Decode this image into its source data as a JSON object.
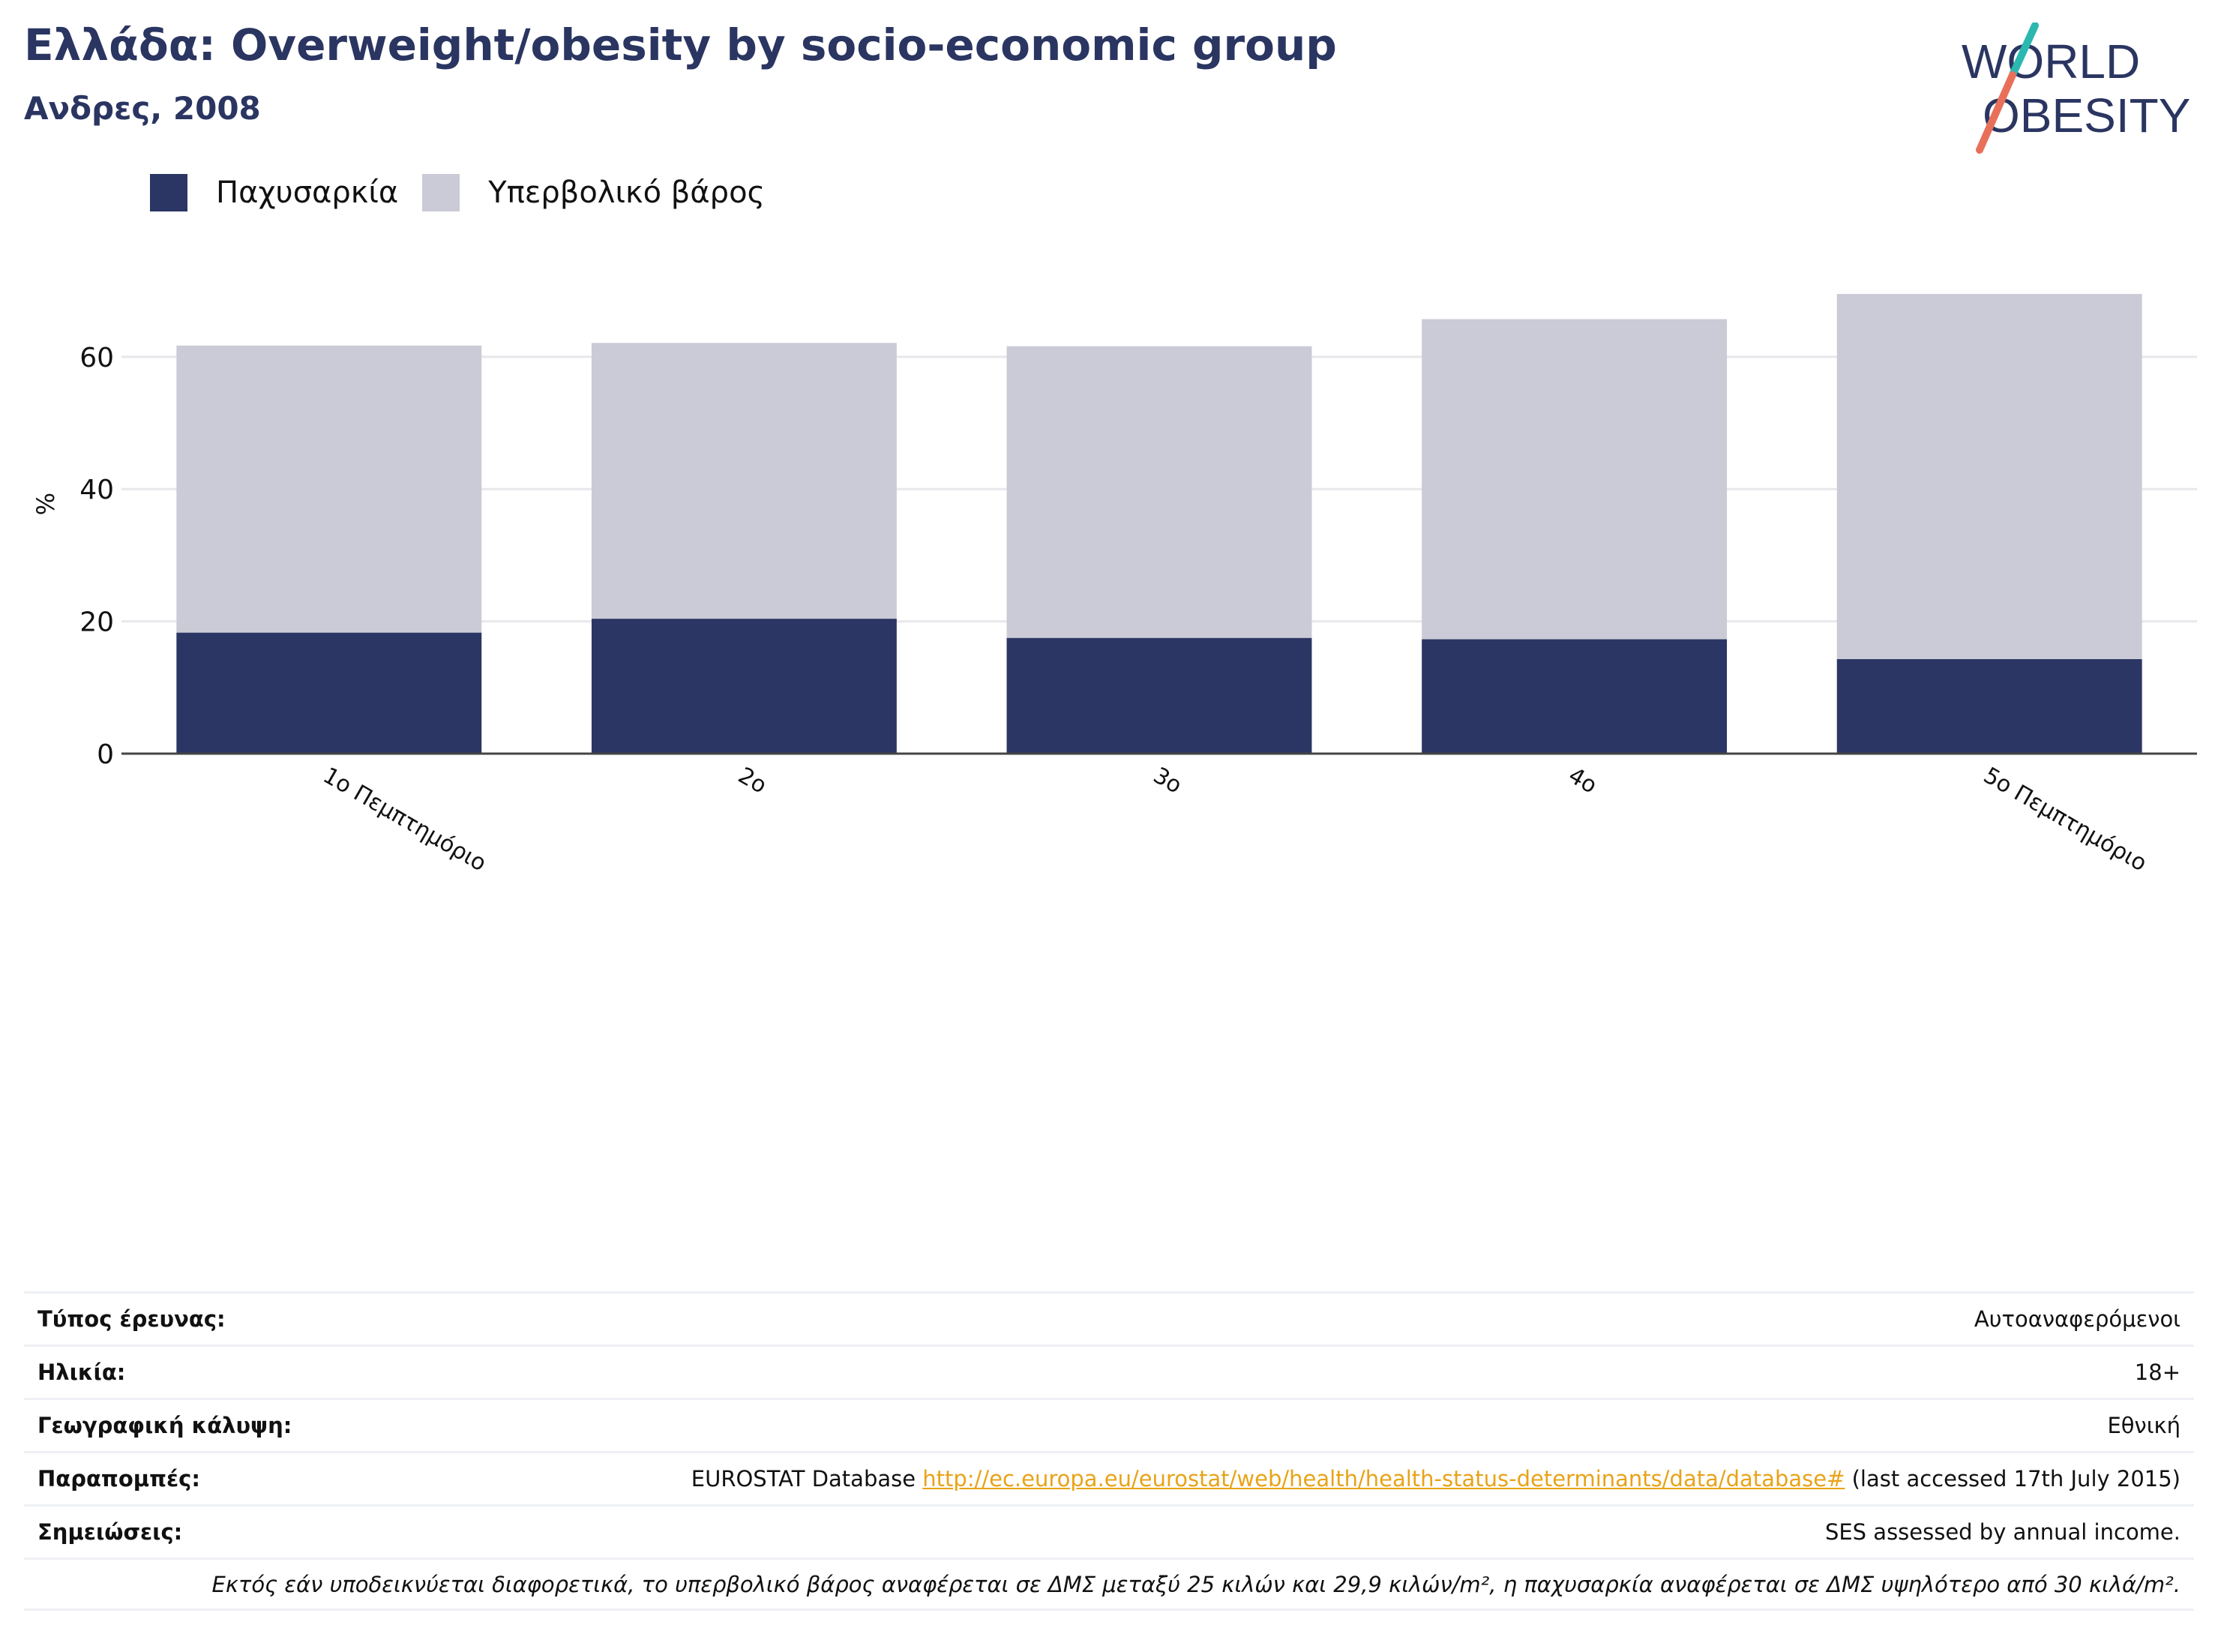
{
  "header": {
    "title": "Ελλάδα: Overweight/obesity by socio-economic group",
    "subtitle": "Ανδρες, 2008"
  },
  "logo": {
    "line1": "WORLD",
    "line2": "OBESITY"
  },
  "colors": {
    "obesity": "#2b3664",
    "overweight": "#cacbd6",
    "accent_teal": "#2bb8b0",
    "accent_coral": "#e8705a",
    "link": "#e8a317"
  },
  "legend": [
    {
      "label": "Παχυσαρκία",
      "color": "#2b3664"
    },
    {
      "label": "Υπερβολικό βάρος",
      "color": "#cacbd6"
    }
  ],
  "chart_data": {
    "type": "bar",
    "stacked": true,
    "categories": [
      "1ο Πεμπτημόριο",
      "2ο",
      "3ο",
      "4ο",
      "5ο Πεμπτημόριο"
    ],
    "series": [
      {
        "name": "Παχυσαρκία",
        "values": [
          18.3,
          20.4,
          17.5,
          17.3,
          14.3
        ]
      },
      {
        "name": "Υπερβολικό βάρος",
        "values": [
          43.4,
          41.7,
          44.1,
          48.4,
          55.2
        ]
      }
    ],
    "ylabel": "%",
    "ylim": [
      0,
      72
    ],
    "yticks": [
      0,
      20,
      40,
      60
    ],
    "grid": true,
    "legend_position": "top-left"
  },
  "info": {
    "survey_type": {
      "label": "Τύπος έρευνας:",
      "value": "Αυτοαναφερόμενοι"
    },
    "age": {
      "label": "Ηλικία:",
      "value": "18+"
    },
    "coverage": {
      "label": "Γεωγραφική κάλυψη:",
      "value": "Εθνική"
    },
    "references": {
      "label": "Παραπομπές:",
      "prefix": "EUROSTAT Database",
      "link": "http://ec.europa.eu/eurostat/web/health/health-status-determinants/data/database#",
      "suffix": "(last accessed 17th July 2015)"
    },
    "notes": {
      "label": "Σημειώσεις:",
      "value": "SES assessed by annual income."
    },
    "footnote": "Εκτός εάν υποδεικνύεται διαφορετικά, το υπερβολικό βάρος αναφέρεται σε ΔΜΣ μεταξύ 25 κιλών και 29,9 κιλών/m², η παχυσαρκία αναφέρεται σε ΔΜΣ υψηλότερο από 30 κιλά/m²."
  }
}
